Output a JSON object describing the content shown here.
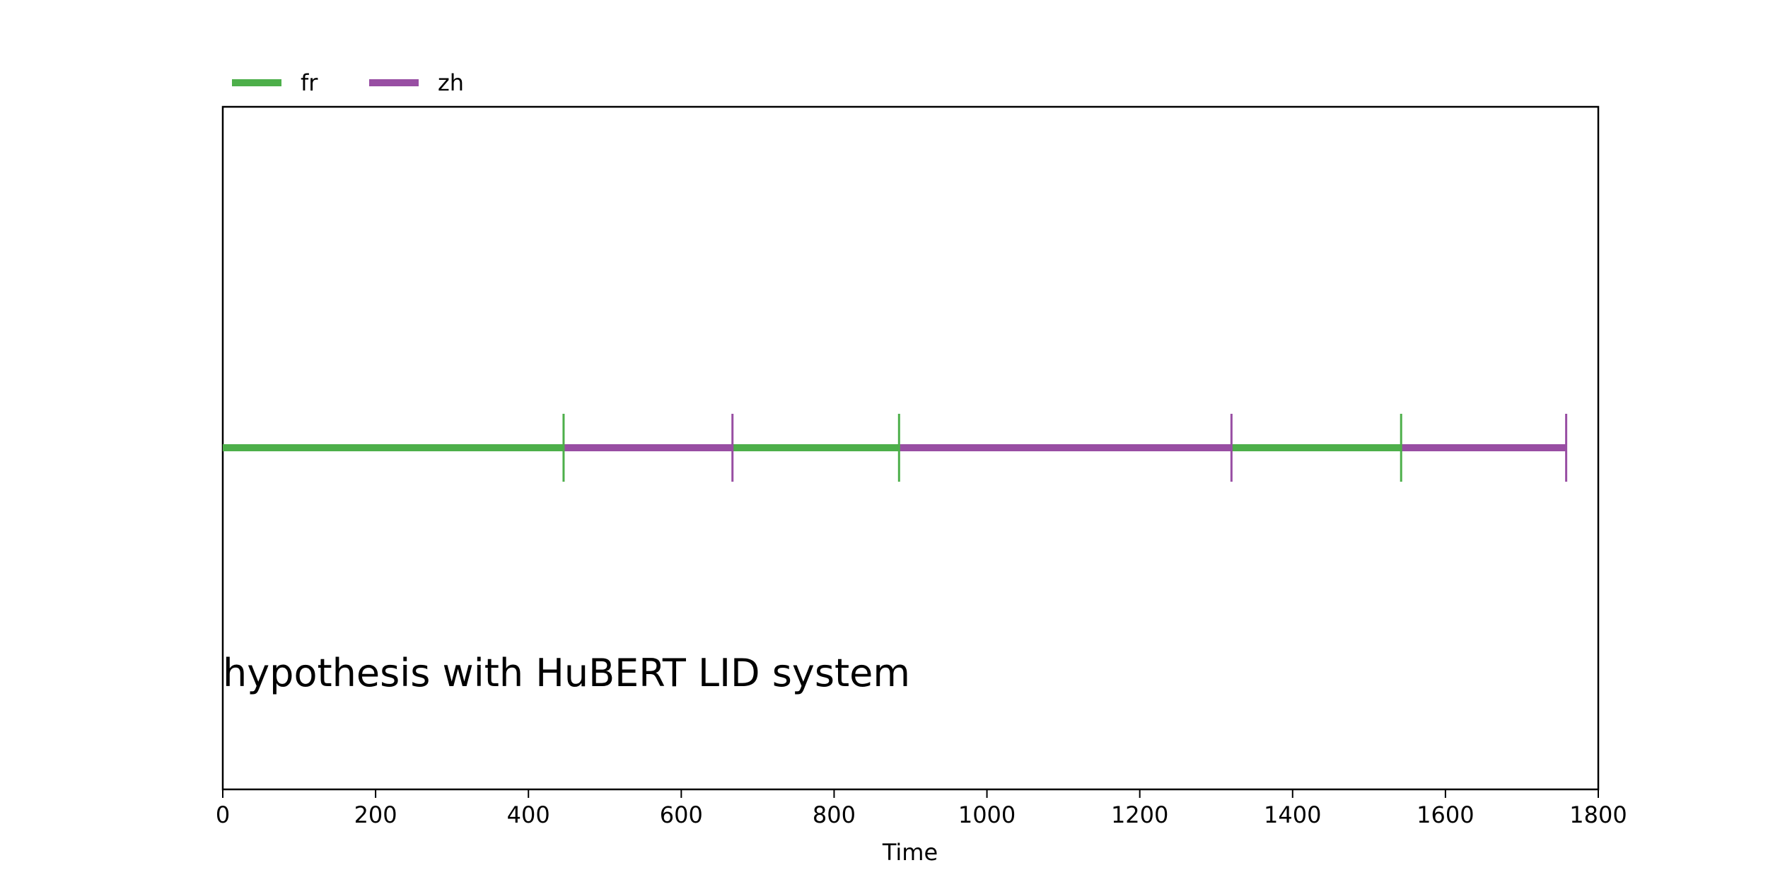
{
  "chart_data": {
    "type": "timeline",
    "xlabel": "Time",
    "xlim": [
      0,
      1800
    ],
    "xticks": [
      0,
      200,
      400,
      600,
      800,
      1000,
      1200,
      1400,
      1600,
      1800
    ],
    "grid": false,
    "legend": {
      "placement": "top-left, outside plot",
      "entries": [
        {
          "label": "fr",
          "color": "#4daf4a"
        },
        {
          "label": "zh",
          "color": "#984ea3"
        }
      ]
    },
    "segments": [
      {
        "label": "fr",
        "start": 0,
        "end": 446
      },
      {
        "label": "zh",
        "start": 446,
        "end": 667
      },
      {
        "label": "fr",
        "start": 667,
        "end": 885
      },
      {
        "label": "zh",
        "start": 885,
        "end": 1320
      },
      {
        "label": "fr",
        "start": 1320,
        "end": 1542
      },
      {
        "label": "zh",
        "start": 1542,
        "end": 1758
      }
    ],
    "annotation": "hypothesis with HuBERT LID system"
  }
}
